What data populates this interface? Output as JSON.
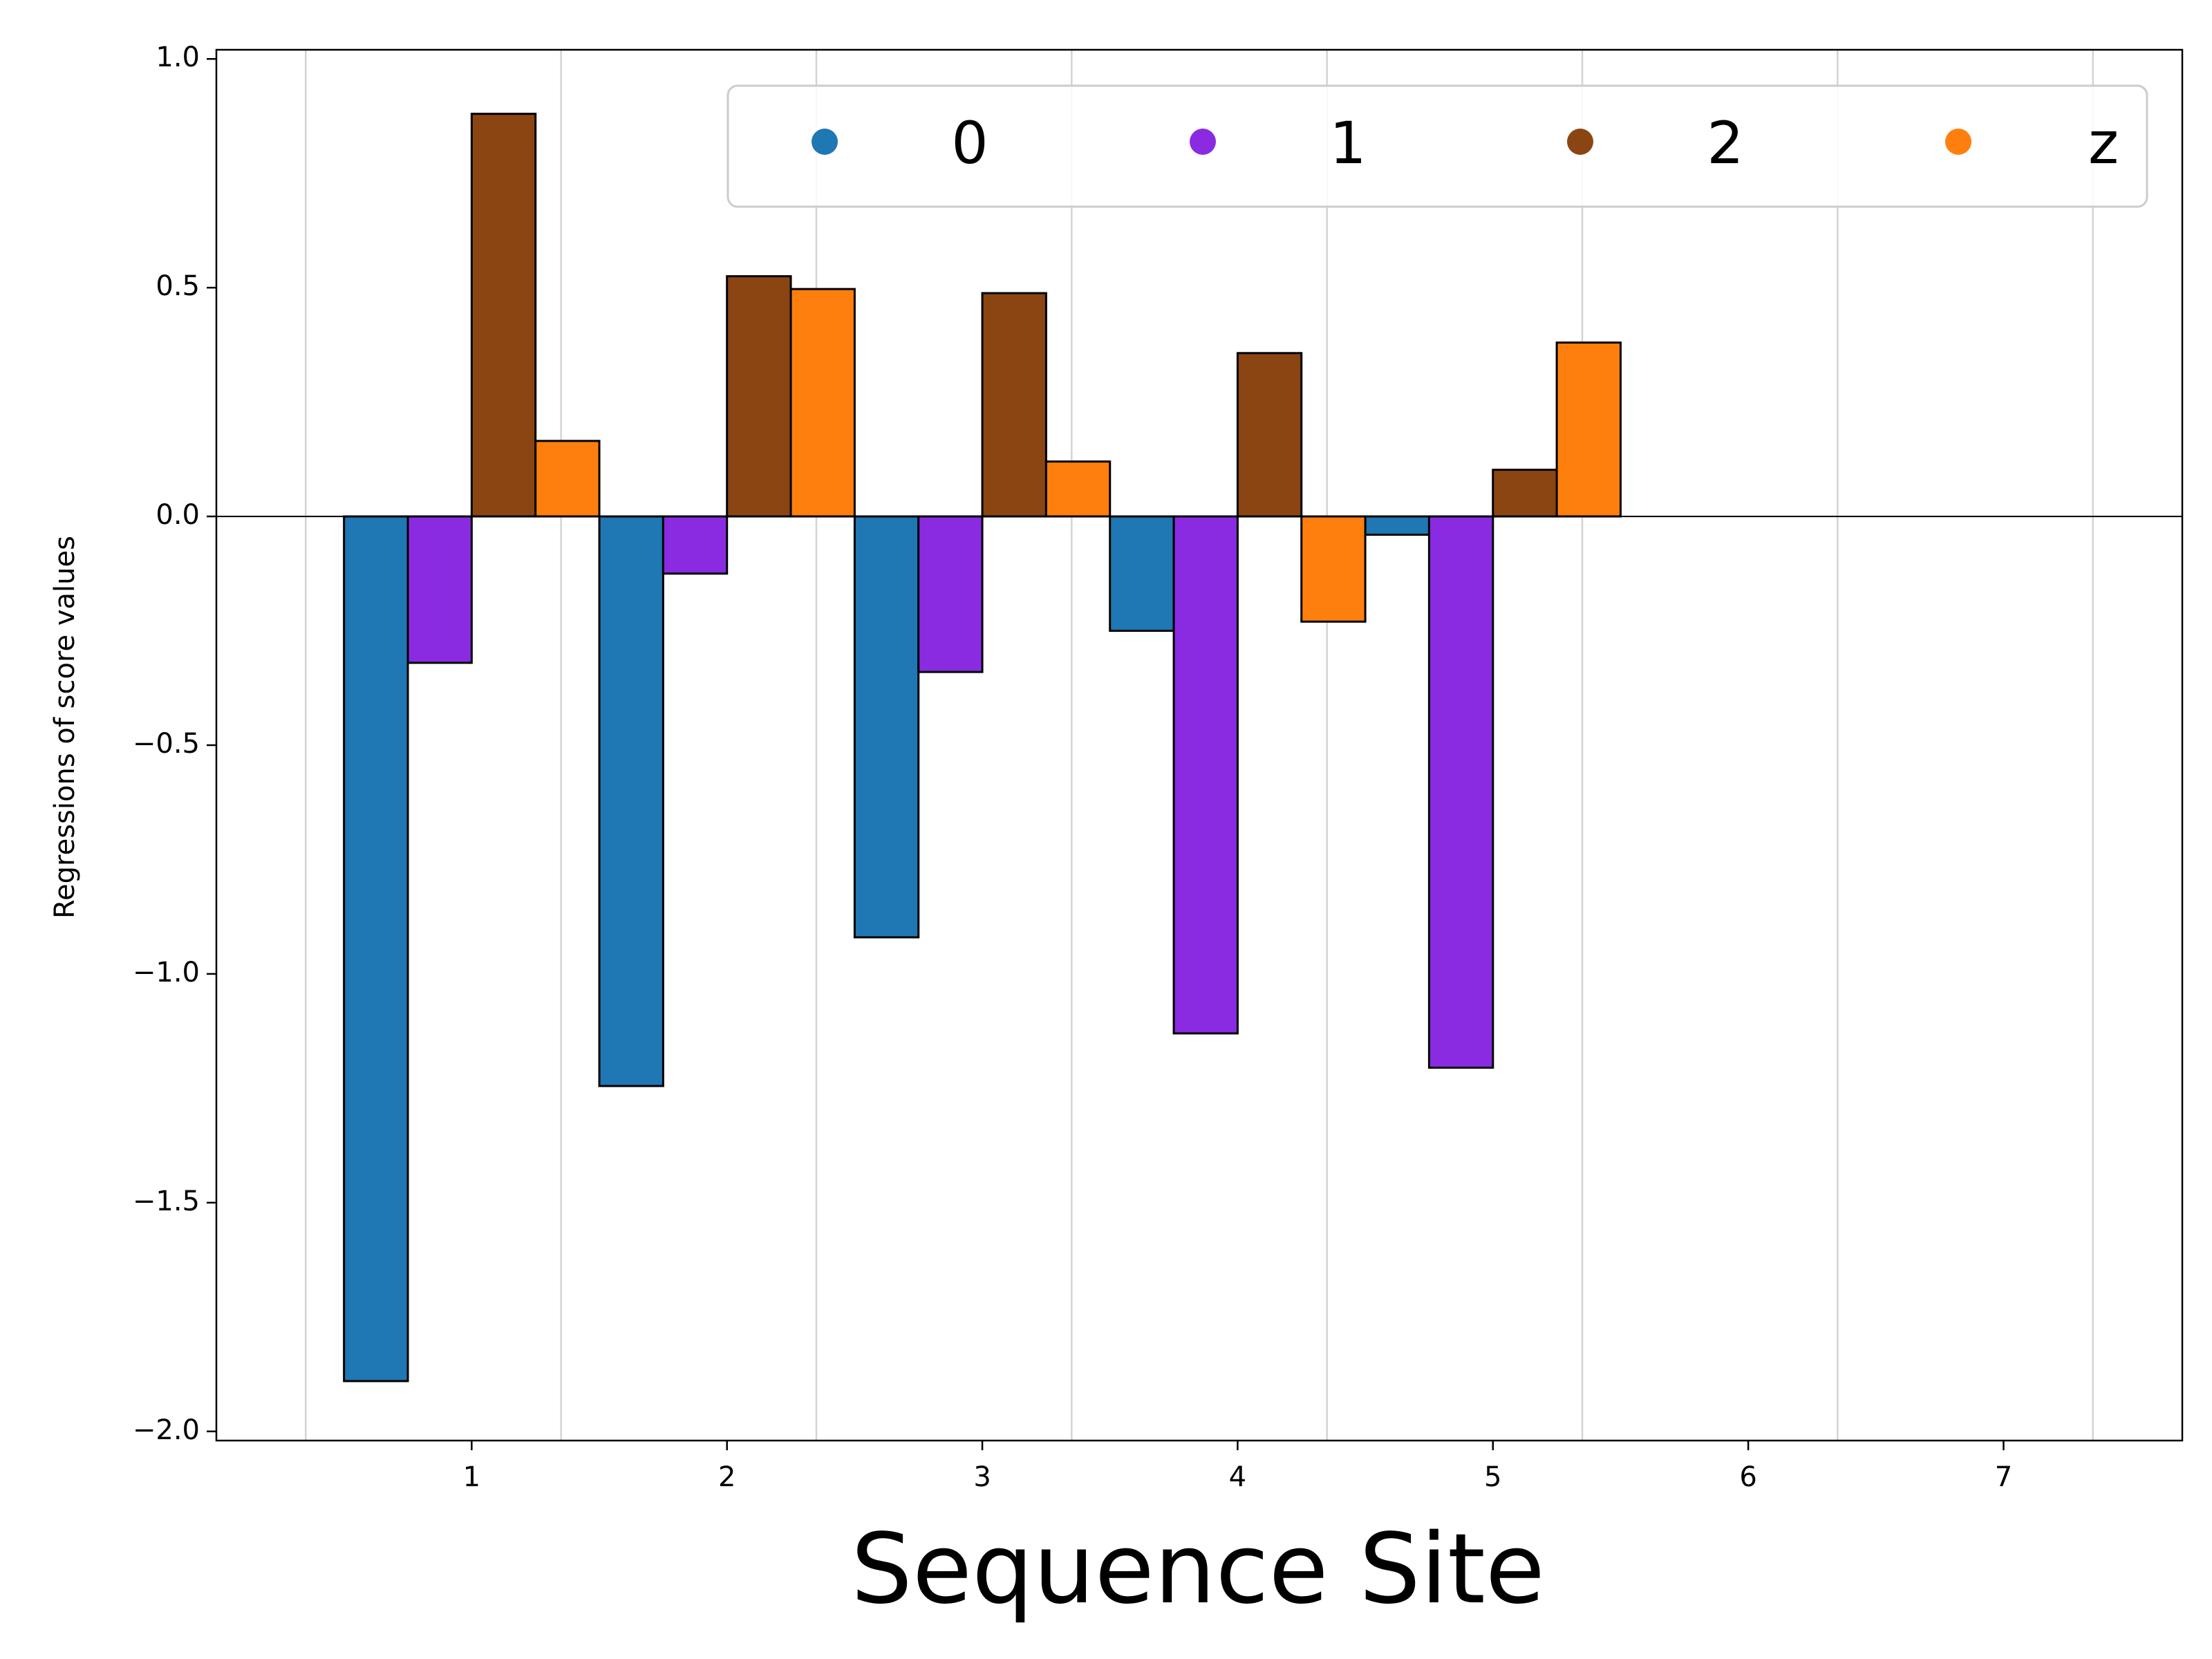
{
  "chart_data": {
    "type": "bar",
    "xlabel": "Sequence Site",
    "ylabel": "Regressions of score values",
    "x_ticks": [
      "1",
      "2",
      "3",
      "4",
      "5",
      "6",
      "7"
    ],
    "y_ticks": [
      "1.0",
      "0.5",
      "0.0",
      "−0.5",
      "−1.0",
      "−1.5",
      "−2.0"
    ],
    "xlim": [
      0.0,
      7.7
    ],
    "ylim": [
      -2.02,
      1.02
    ],
    "grid": "vertical lines at x = 0.35 to 7.35, step 1",
    "legend_position": "top-right",
    "categories": [
      1,
      2,
      3,
      4,
      5,
      6,
      7
    ],
    "series": [
      {
        "name": "0",
        "color": "#1f77b4",
        "values": [
          -1.89,
          -1.245,
          -0.92,
          -0.25,
          -0.04,
          null,
          null
        ]
      },
      {
        "name": "1",
        "color": "#8a2be2",
        "values": [
          -0.32,
          -0.125,
          -0.34,
          -1.13,
          -1.205,
          null,
          null
        ]
      },
      {
        "name": "2",
        "color": "#8b4513",
        "values": [
          0.88,
          0.525,
          0.488,
          0.357,
          0.102,
          null,
          null
        ]
      },
      {
        "name": "z",
        "color": "#ff7f0e",
        "values": [
          0.165,
          0.497,
          0.12,
          -0.23,
          0.38,
          null,
          null
        ]
      }
    ]
  }
}
